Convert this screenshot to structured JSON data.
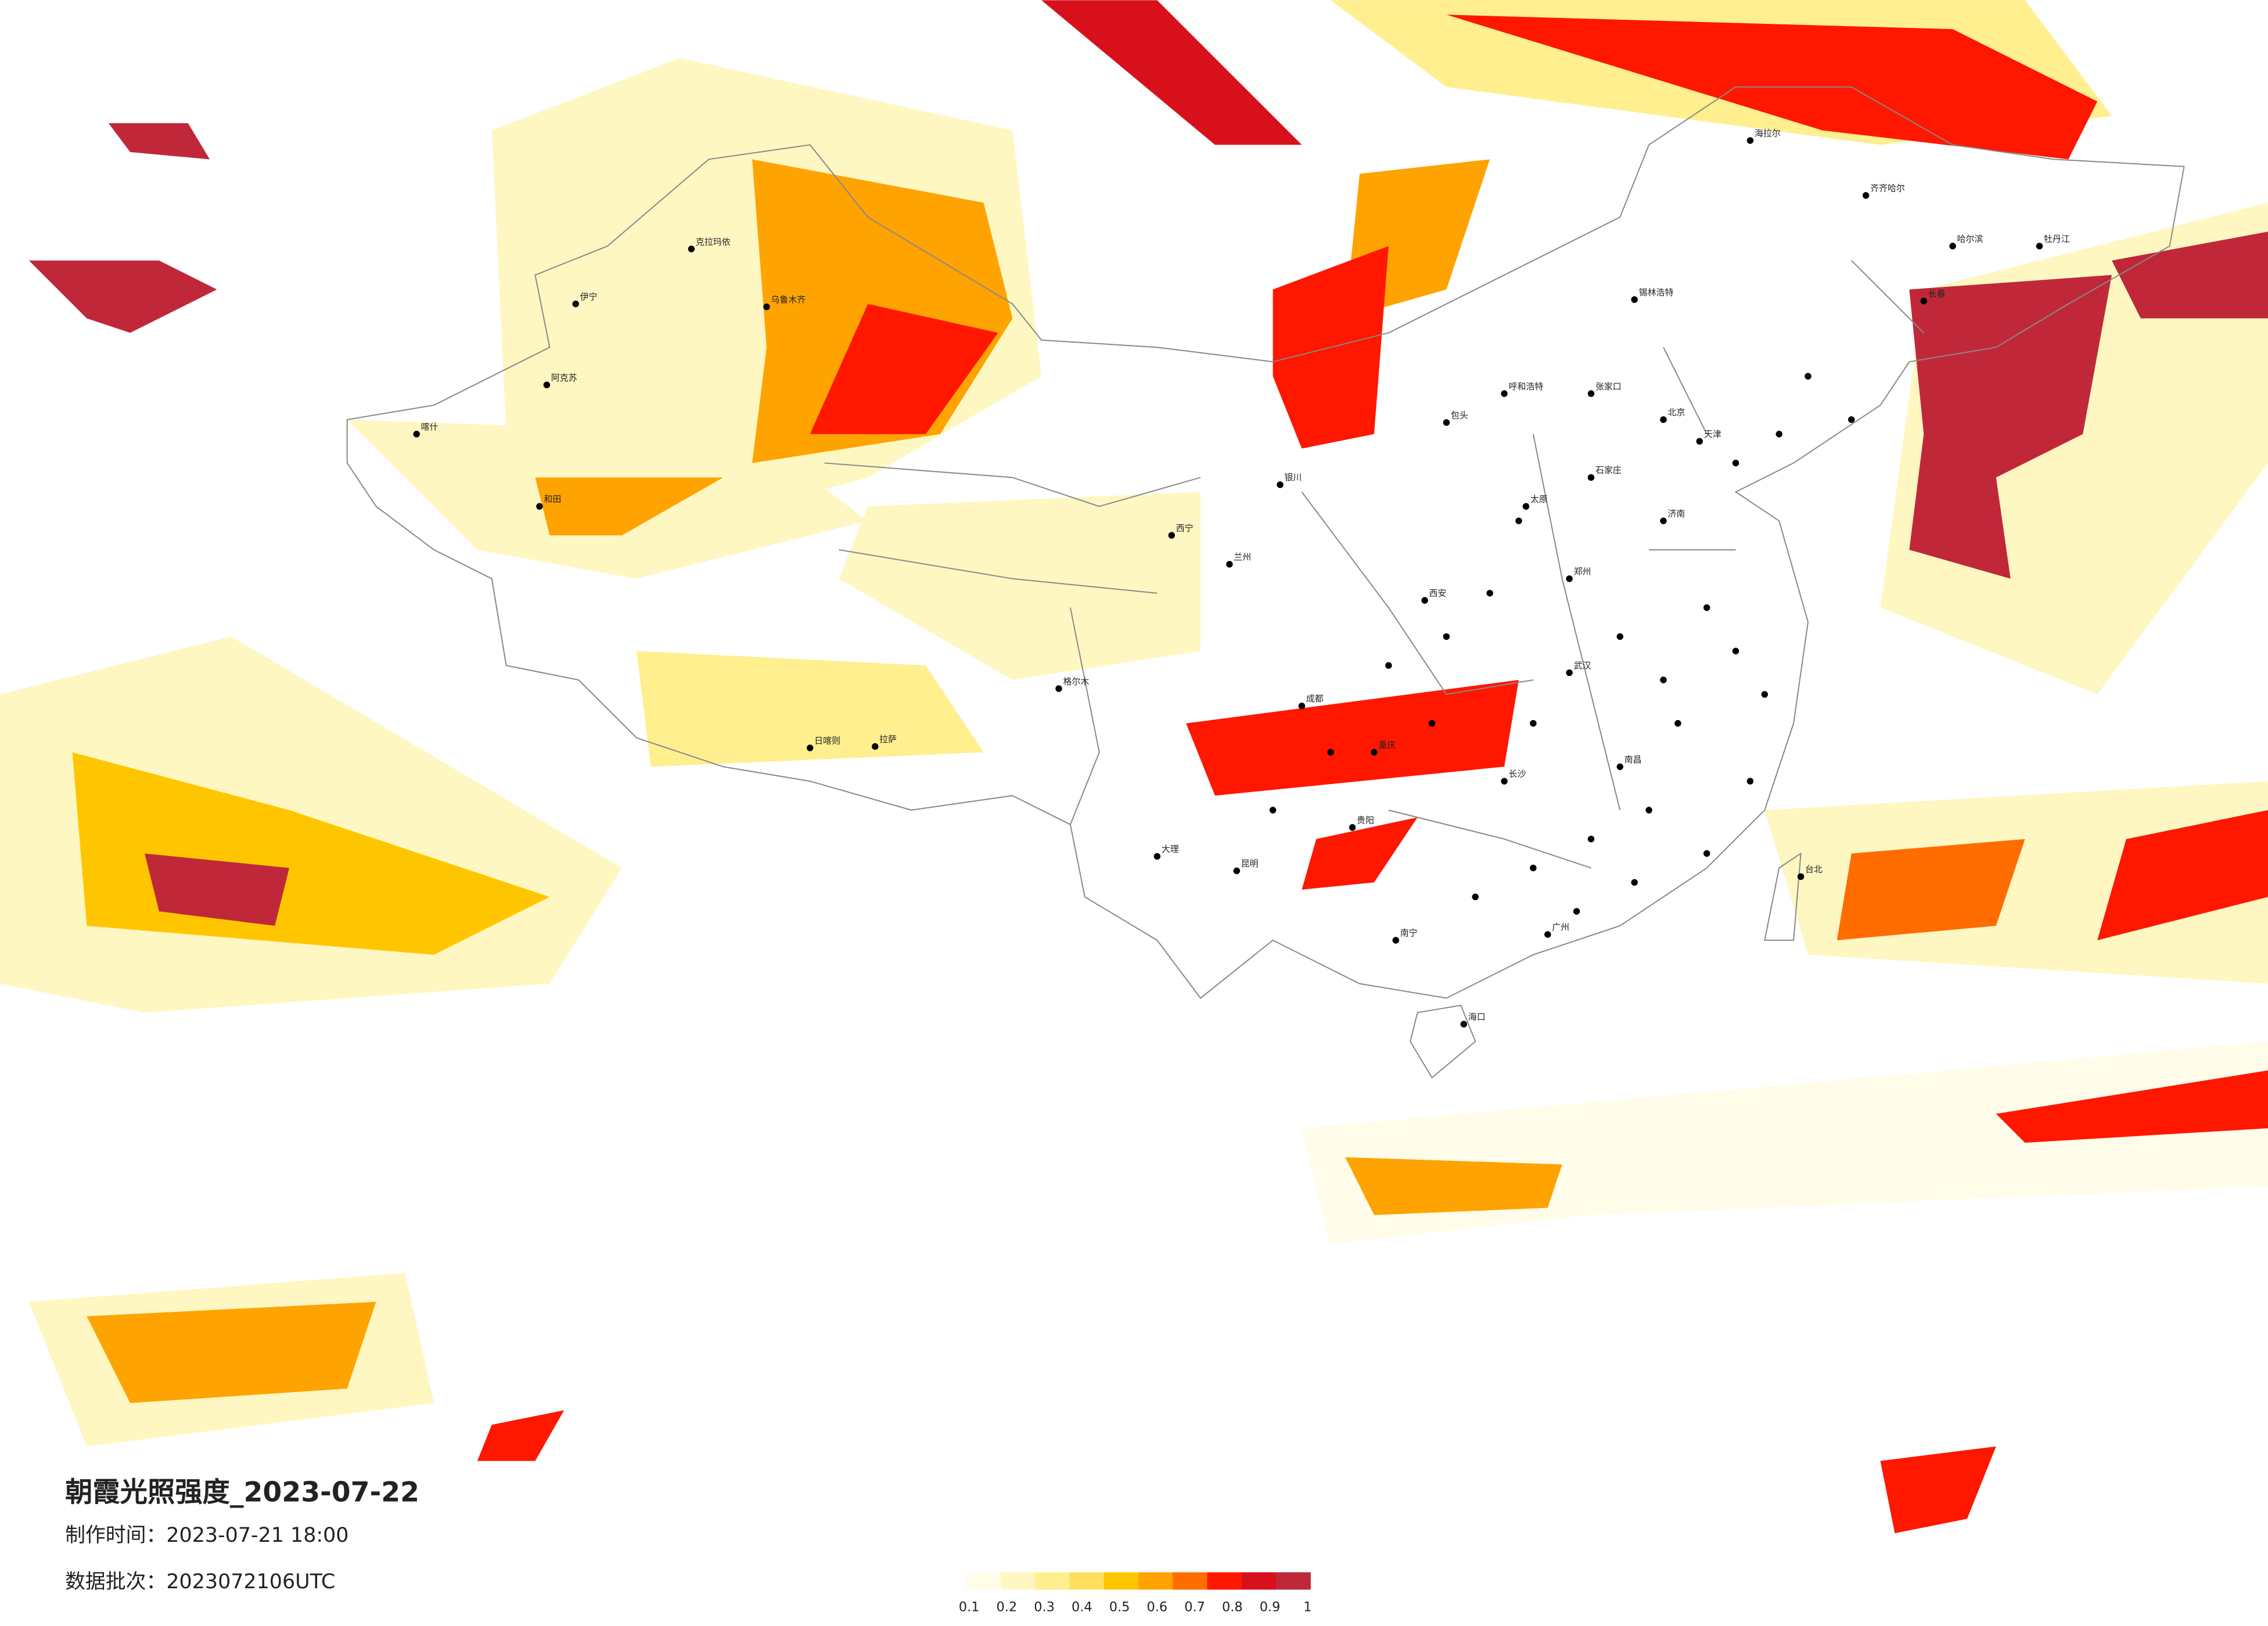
{
  "header": {
    "title": "朝霞光照强度_2023-07-22",
    "made_time": "制作时间：2023-07-21 18:00",
    "batch": "数据批次：2023072106UTC"
  },
  "legend": {
    "items": [
      {
        "value": 0.1,
        "color": "#fffde9"
      },
      {
        "value": 0.2,
        "color": "#fff7c2"
      },
      {
        "value": 0.3,
        "color": "#ffef8f"
      },
      {
        "value": 0.4,
        "color": "#ffdf5c"
      },
      {
        "value": 0.5,
        "color": "#ffc600"
      },
      {
        "value": 0.6,
        "color": "#ffa300"
      },
      {
        "value": 0.7,
        "color": "#ff6d00"
      },
      {
        "value": 0.8,
        "color": "#ff1700"
      },
      {
        "value": 0.9,
        "color": "#d8101c"
      },
      {
        "value": 1,
        "color": "#c0283a"
      }
    ]
  },
  "cities": [
    "海拉尔",
    "齐齐哈尔",
    "哈尔滨",
    "长春",
    "牡丹江",
    "呼和浩特",
    "包头",
    "张家口",
    "北京",
    "天津",
    "石家庄",
    "太原",
    "济南",
    "郑州",
    "西安",
    "银川",
    "西宁",
    "兰州",
    "乌鲁木齐",
    "克拉玛依",
    "伊宁",
    "阿克苏",
    "喀什",
    "和田",
    "格尔木",
    "拉萨",
    "日喀则",
    "成都",
    "重庆",
    "贵阳",
    "昆明",
    "南宁",
    "广州",
    "海口",
    "长沙",
    "南昌",
    "武汉",
    "台北",
    "大理",
    "锡林浩特"
  ]
}
